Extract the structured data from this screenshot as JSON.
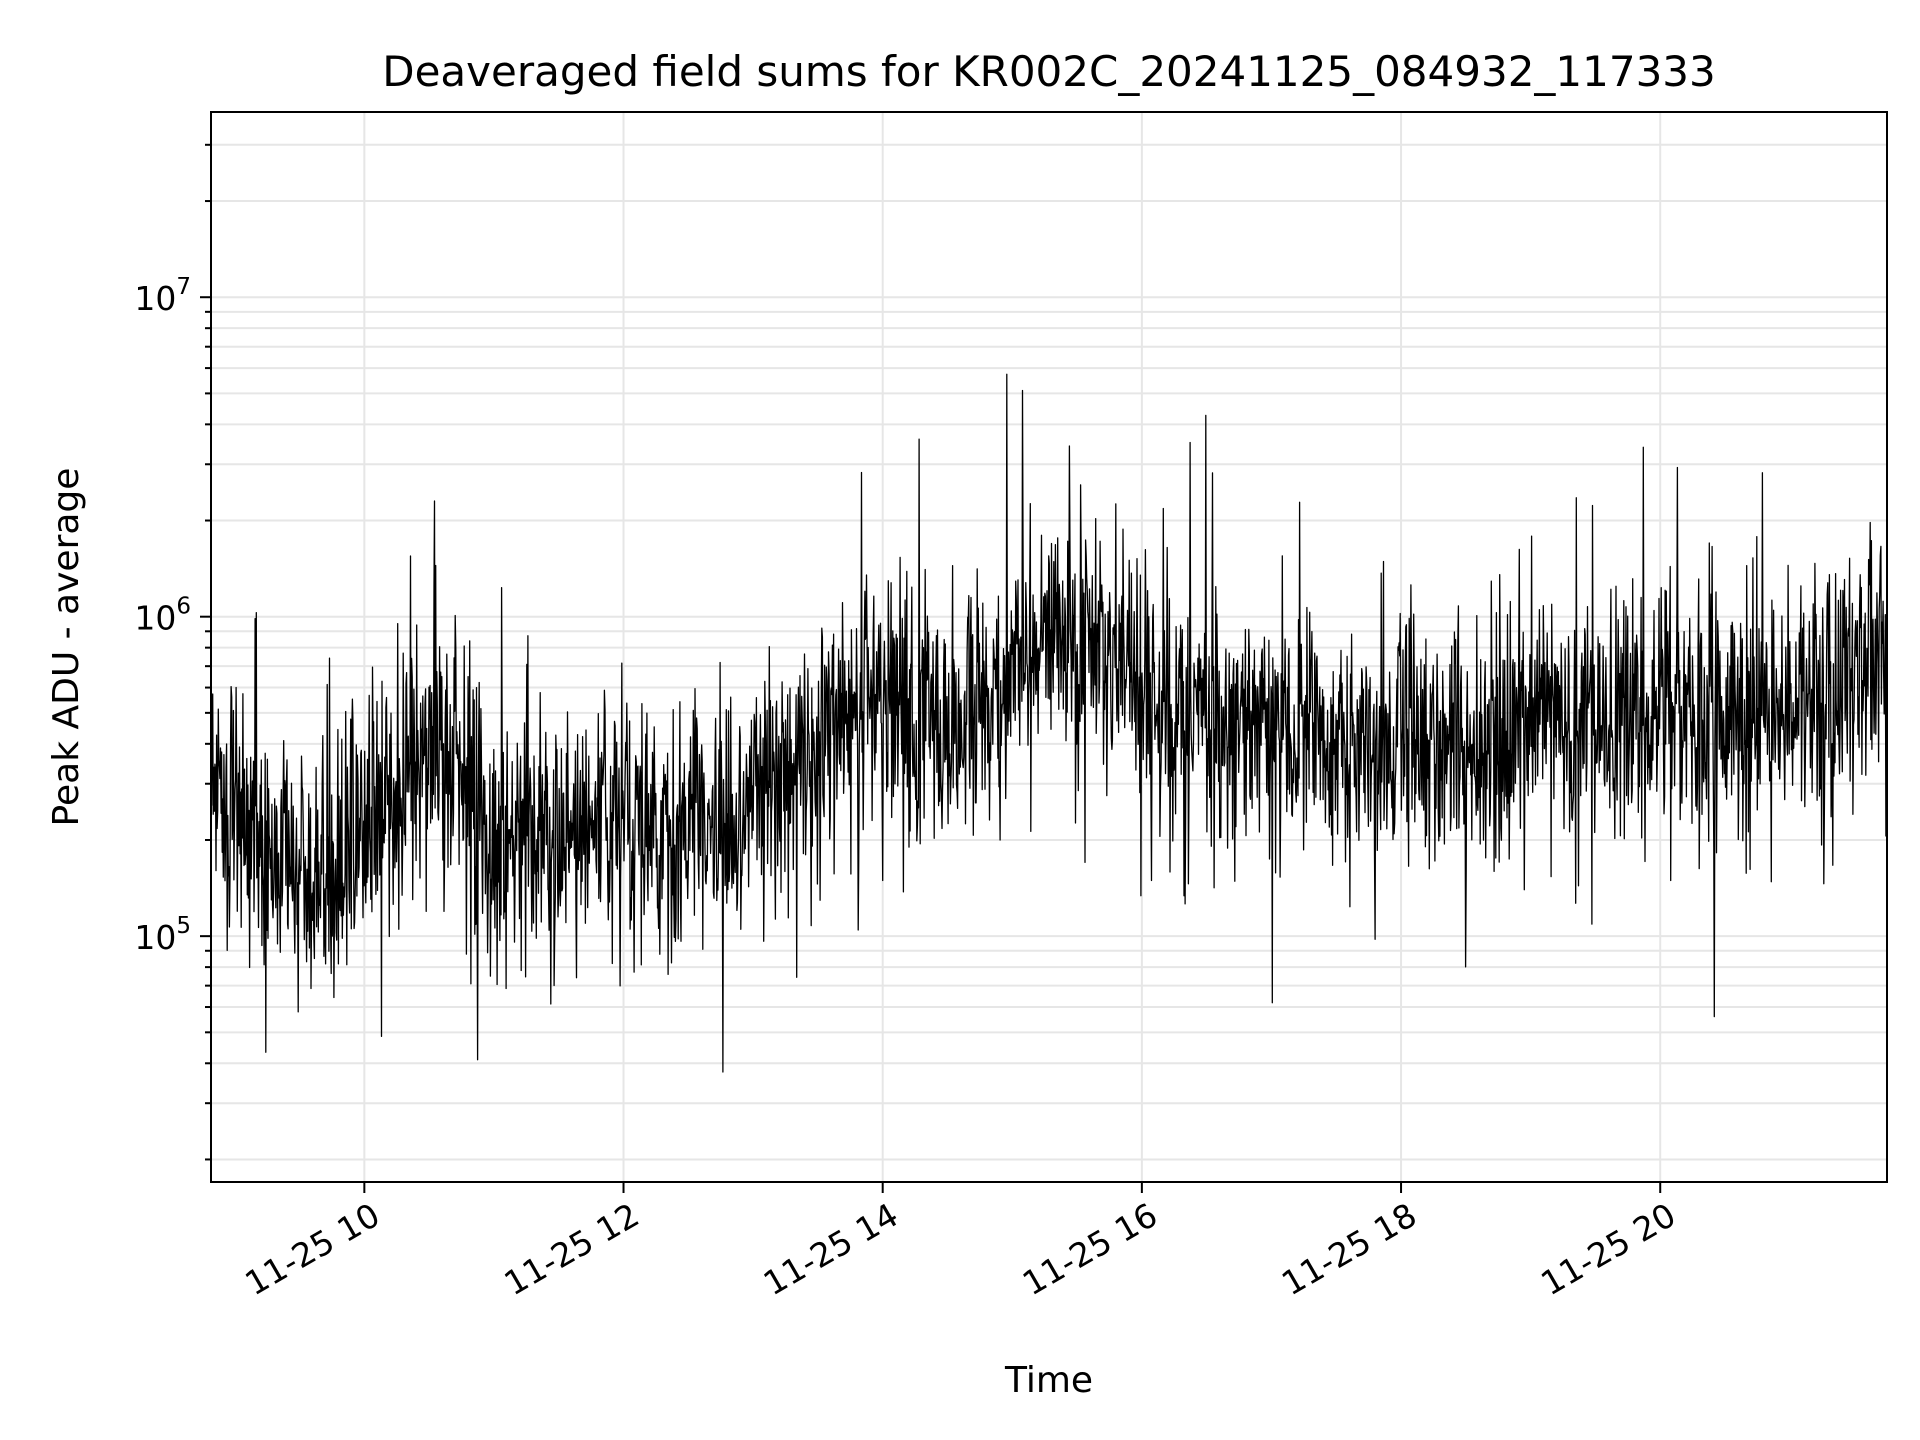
{
  "chart_data": {
    "type": "line",
    "title": "Deaveraged field sums for KR002C_20241125_084932_117333",
    "xlabel": "Time",
    "ylabel": "Peak ADU - average",
    "x_axis": {
      "kind": "datetime",
      "range": [
        "11-25 08:49",
        "11-25 21:45"
      ],
      "ticks": [
        "11-25 10",
        "11-25 12",
        "11-25 14",
        "11-25 16",
        "11-25 18",
        "11-25 20"
      ]
    },
    "y_axis": {
      "scale": "log",
      "range": [
        17000,
        38000000
      ],
      "ticks": [
        {
          "base": "10",
          "exp": "5",
          "value": 100000
        },
        {
          "base": "10",
          "exp": "6",
          "value": 1000000
        },
        {
          "base": "10",
          "exp": "7",
          "value": 10000000
        }
      ]
    },
    "grid": true,
    "legend": "none",
    "line_color": "#000000",
    "series": [
      {
        "x": [
          "11-25 08:49",
          "11-25 09:00",
          "11-25 09:15",
          "11-25 09:30",
          "11-25 09:45",
          "11-25 10:00",
          "11-25 10:15",
          "11-25 10:30",
          "11-25 10:45",
          "11-25 11:00",
          "11-25 11:15",
          "11-25 11:30",
          "11-25 11:45",
          "11-25 12:00",
          "11-25 12:15",
          "11-25 12:30",
          "11-25 12:45",
          "11-25 13:00",
          "11-25 13:15",
          "11-25 13:30",
          "11-25 13:45",
          "11-25 14:00",
          "11-25 14:15",
          "11-25 14:30",
          "11-25 14:45",
          "11-25 15:00",
          "11-25 15:15",
          "11-25 15:30",
          "11-25 15:45",
          "11-25 16:00",
          "11-25 16:15",
          "11-25 16:30",
          "11-25 16:45",
          "11-25 17:00",
          "11-25 17:15",
          "11-25 17:30",
          "11-25 17:45",
          "11-25 18:00",
          "11-25 18:15",
          "11-25 18:30",
          "11-25 18:45",
          "11-25 19:00",
          "11-25 19:15",
          "11-25 19:30",
          "11-25 19:45",
          "11-25 20:00",
          "11-25 20:15",
          "11-25 20:30",
          "11-25 20:45",
          "11-25 21:00",
          "11-25 21:15",
          "11-25 21:30",
          "11-25 21:45"
        ],
        "y": [
          350000,
          250000,
          180000,
          160000,
          150000,
          220000,
          300000,
          400000,
          350000,
          170000,
          250000,
          200000,
          220000,
          250000,
          230000,
          220000,
          200000,
          280000,
          320000,
          400000,
          450000,
          520000,
          500000,
          420000,
          520000,
          700000,
          850000,
          900000,
          800000,
          650000,
          500000,
          480000,
          450000,
          420000,
          420000,
          400000,
          380000,
          420000,
          420000,
          380000,
          450000,
          500000,
          480000,
          420000,
          520000,
          500000,
          480000,
          450000,
          500000,
          520000,
          580000,
          700000,
          800000
        ]
      }
    ]
  }
}
